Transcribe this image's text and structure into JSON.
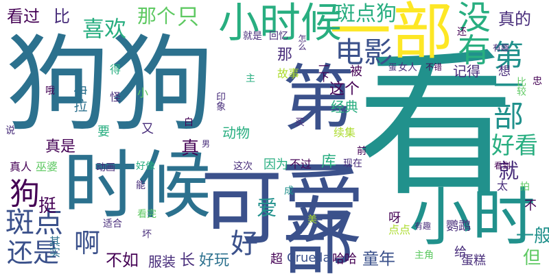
{
  "palette": [
    "#440154",
    "#472c7a",
    "#3b518b",
    "#2c718e",
    "#21918c",
    "#28ae80",
    "#5ec962",
    "#addc30",
    "#fde725"
  ],
  "words": [
    {
      "text": "狗狗",
      "color": "#2c718e"
    },
    {
      "text": "看",
      "color": "#21918c"
    },
    {
      "text": "时候",
      "color": "#2c718e"
    },
    {
      "text": "可爱",
      "color": "#3b518b"
    },
    {
      "text": "一部",
      "color": "#fde725"
    },
    {
      "text": "小时",
      "color": "#21918c"
    },
    {
      "text": "第一部",
      "color": "#3b518b"
    },
    {
      "text": "小时候",
      "color": "#28ae80"
    },
    {
      "text": "电影",
      "color": "#3b518b"
    },
    {
      "text": "没有",
      "color": "#28ae80"
    },
    {
      "text": "斑点狗",
      "color": "#28ae80"
    },
    {
      "text": "第一部",
      "color": "#21918c"
    },
    {
      "text": "好看",
      "color": "#28ae80"
    },
    {
      "text": "真的",
      "color": "#472c7a"
    },
    {
      "text": "狗",
      "color": "#440154"
    },
    {
      "text": "斑点",
      "color": "#3b518b"
    },
    {
      "text": "还是",
      "color": "#3b518b"
    },
    {
      "text": "喜欢",
      "color": "#28ae80"
    },
    {
      "text": "那个",
      "color": "#5ec962"
    },
    {
      "text": "只",
      "color": "#5ec962"
    },
    {
      "text": "看过",
      "color": "#440154"
    },
    {
      "text": "比",
      "color": "#472c7a"
    },
    {
      "text": "好",
      "color": "#3b518b"
    },
    {
      "text": "啊",
      "color": "#3b518b"
    },
    {
      "text": "就",
      "color": "#472c7a"
    },
    {
      "text": "真",
      "color": "#440154"
    },
    {
      "text": "真是",
      "color": "#440154"
    },
    {
      "text": "挺",
      "color": "#440154"
    },
    {
      "text": "不如",
      "color": "#440154"
    },
    {
      "text": "服装",
      "color": "#472c7a"
    },
    {
      "text": "长",
      "color": "#472c7a"
    },
    {
      "text": "好玩",
      "color": "#2c718e"
    },
    {
      "text": "一般",
      "color": "#21918c"
    },
    {
      "text": "但",
      "color": "#5ec962"
    },
    {
      "text": "童年",
      "color": "#3b518b"
    },
    {
      "text": "哈哈",
      "color": "#440154"
    },
    {
      "text": "超",
      "color": "#440154"
    },
    {
      "text": "Cruella",
      "color": "#3b518b"
    },
    {
      "text": "主角",
      "color": "#5ec962"
    },
    {
      "text": "给",
      "color": "#472c7a"
    },
    {
      "text": "蛋糕",
      "color": "#472c7a"
    },
    {
      "text": "爱",
      "color": "#21918c"
    },
    {
      "text": "动物",
      "color": "#28ae80"
    },
    {
      "text": "续集",
      "color": "#addc30"
    },
    {
      "text": "经典",
      "color": "#28ae80"
    },
    {
      "text": "这个",
      "color": "#440154"
    },
    {
      "text": "被",
      "color": "#440154"
    },
    {
      "text": "故事",
      "color": "#addc30"
    },
    {
      "text": "那",
      "color": "#472c7a"
    },
    {
      "text": "记得",
      "color": "#472c7a"
    },
    {
      "text": "就是",
      "color": "#472c7a"
    },
    {
      "text": "回忆",
      "color": "#472c7a"
    },
    {
      "text": "怎么",
      "color": "#472c7a"
    },
    {
      "text": "一下",
      "color": "#440154"
    },
    {
      "text": "女人",
      "color": "#472c7a"
    },
    {
      "text": "不错",
      "color": "#440154"
    },
    {
      "text": "有趣",
      "color": "#472c7a"
    },
    {
      "text": "鹦鹉",
      "color": "#472c7a"
    },
    {
      "text": "太",
      "color": "#472c7a"
    },
    {
      "text": "呀",
      "color": "#440154"
    },
    {
      "text": "点点",
      "color": "#addc30"
    },
    {
      "text": "看完",
      "color": "#5ec962"
    },
    {
      "text": "美",
      "color": "#addc30"
    },
    {
      "text": "适合",
      "color": "#472c7a"
    },
    {
      "text": "坏",
      "color": "#472c7a"
    },
    {
      "text": "其实",
      "color": "#2c718e"
    },
    {
      "text": "好像",
      "color": "#28ae80"
    },
    {
      "text": "动画",
      "color": "#472c7a"
    },
    {
      "text": "这次",
      "color": "#472c7a"
    },
    {
      "text": "因为",
      "color": "#28ae80"
    },
    {
      "text": "不过",
      "color": "#440154"
    },
    {
      "text": "库",
      "color": "#28ae80"
    },
    {
      "text": "现在",
      "color": "#472c7a"
    },
    {
      "text": "真人",
      "color": "#440154"
    },
    {
      "text": "巫婆",
      "color": "#5ec962"
    },
    {
      "text": "伊拉",
      "color": "#2c718e"
    },
    {
      "text": "要",
      "color": "#28ae80"
    },
    {
      "text": "又",
      "color": "#472c7a"
    },
    {
      "text": "白",
      "color": "#440154"
    },
    {
      "text": "男",
      "color": "#472c7a"
    },
    {
      "text": "印象",
      "color": "#472c7a"
    },
    {
      "text": "买",
      "color": "#472c7a"
    },
    {
      "text": "前",
      "color": "#440154"
    },
    {
      "text": "成",
      "color": "#21918c"
    },
    {
      "text": "能",
      "color": "#472c7a"
    },
    {
      "text": "得",
      "color": "#28ae80"
    },
    {
      "text": "怪",
      "color": "#472c7a"
    },
    {
      "text": "哦",
      "color": "#440154"
    },
    {
      "text": "说",
      "color": "#472c7a"
    },
    {
      "text": "小",
      "color": "#5ec962"
    },
    {
      "text": "主",
      "color": "#28ae80"
    },
    {
      "text": "还",
      "color": "#440154"
    },
    {
      "text": "有趣",
      "color": "#472c7a"
    },
    {
      "text": "蛋",
      "color": "#472c7a"
    },
    {
      "text": "想",
      "color": "#472c7a"
    },
    {
      "text": "比较",
      "color": "#5ec962"
    },
    {
      "text": "忠",
      "color": "#440154"
    },
    {
      "text": "看到",
      "color": "#440154"
    },
    {
      "text": "拍",
      "color": "#5ec962"
    },
    {
      "text": "不",
      "color": "#440154"
    }
  ]
}
